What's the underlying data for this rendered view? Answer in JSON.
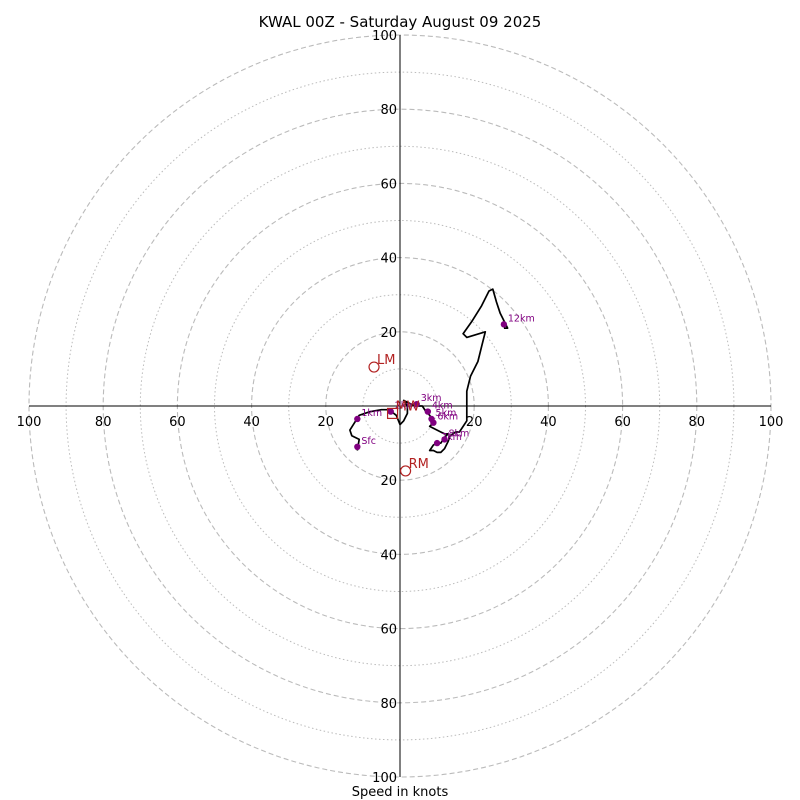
{
  "chart_data": {
    "type": "hodograph",
    "title": "KWAL 00Z - Saturday August 09 2025",
    "xlabel": "Speed in knots",
    "units": "knots",
    "rings_major": [
      20,
      40,
      60,
      80,
      100
    ],
    "rings_minor": [
      10,
      30,
      50,
      70,
      90
    ],
    "tick_labels": [
      "20",
      "40",
      "60",
      "80",
      "100"
    ],
    "x_range": [
      -100,
      100
    ],
    "y_range": [
      -100,
      100
    ],
    "grid": true,
    "colors": {
      "trace": "#000000",
      "points": "#800080",
      "motion": "#b22222",
      "ring": "#bbbbbb",
      "axis": "#000000"
    },
    "trace": [
      [
        -11.5,
        -12
      ],
      [
        -11,
        -9
      ],
      [
        -13,
        -8
      ],
      [
        -13.5,
        -6.5
      ],
      [
        -11,
        -2.5
      ],
      [
        -8,
        -1.5
      ],
      [
        -5,
        -1
      ],
      [
        -3,
        -1
      ],
      [
        -1,
        -2.5
      ],
      [
        0,
        -5
      ],
      [
        1,
        -4
      ],
      [
        2,
        -2
      ],
      [
        2,
        0
      ],
      [
        1,
        1.5
      ],
      [
        2,
        1
      ],
      [
        4,
        0
      ],
      [
        5,
        0
      ],
      [
        6,
        0
      ],
      [
        7,
        -1.5
      ],
      [
        8,
        -2.5
      ],
      [
        9,
        -4.5
      ],
      [
        8,
        -5.5
      ],
      [
        9,
        -6
      ],
      [
        10,
        -6.5
      ],
      [
        11,
        -7
      ],
      [
        12,
        -7.5
      ],
      [
        13,
        -7.5
      ],
      [
        12,
        -8.5
      ],
      [
        11,
        -10
      ],
      [
        10,
        -10
      ],
      [
        9,
        -10.5
      ],
      [
        8,
        -12
      ],
      [
        9,
        -12
      ],
      [
        10,
        -12.5
      ],
      [
        11,
        -12.5
      ],
      [
        12,
        -11.5
      ],
      [
        13,
        -9.5
      ],
      [
        13.5,
        -8
      ],
      [
        15,
        -7
      ],
      [
        16,
        -7
      ],
      [
        18,
        -4
      ],
      [
        18,
        0
      ],
      [
        18,
        4
      ],
      [
        19,
        8
      ],
      [
        21,
        12
      ],
      [
        22,
        16
      ],
      [
        23,
        20
      ],
      [
        18,
        18.5
      ],
      [
        17,
        19.5
      ],
      [
        19.5,
        23
      ],
      [
        22,
        27
      ],
      [
        24,
        31
      ],
      [
        25,
        31.5
      ],
      [
        26,
        28
      ],
      [
        27,
        25
      ],
      [
        29,
        21
      ],
      [
        28,
        21
      ]
    ],
    "points": [
      {
        "label": "Sfc",
        "x": -11.5,
        "y": -11
      },
      {
        "label": "1km",
        "x": -11.5,
        "y": -3.5
      },
      {
        "label": "2km",
        "x": -2.5,
        "y": -1.5
      },
      {
        "label": "3km",
        "x": 4.5,
        "y": 0.5
      },
      {
        "label": "4km",
        "x": 7.5,
        "y": -1.5
      },
      {
        "label": "5km",
        "x": 8.5,
        "y": -3.5
      },
      {
        "label": "6km",
        "x": 9,
        "y": -4.5
      },
      {
        "label": "7km",
        "x": 10,
        "y": -10
      },
      {
        "label": "8km",
        "x": 12,
        "y": -9
      },
      {
        "label": "12km",
        "x": 28,
        "y": 22
      }
    ],
    "storm_motion": [
      {
        "label": "LM",
        "x": -7,
        "y": 10.5,
        "marker": "circle"
      },
      {
        "label": "RM",
        "x": 1.5,
        "y": -17.5,
        "marker": "circle"
      },
      {
        "label": "MW",
        "x": -2,
        "y": -2,
        "marker": "square"
      }
    ]
  }
}
